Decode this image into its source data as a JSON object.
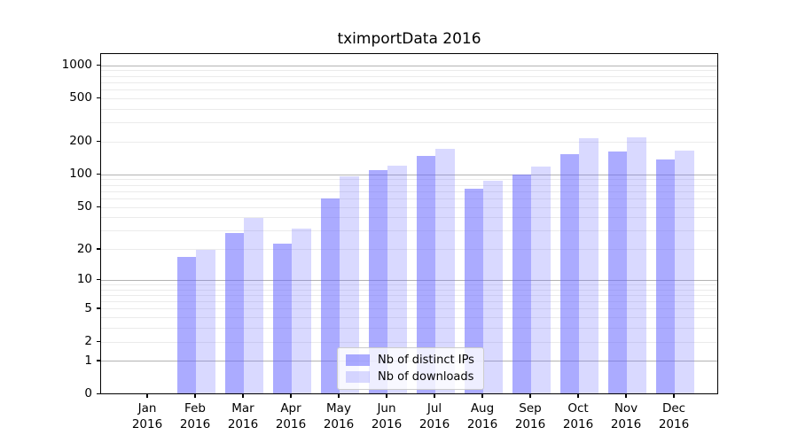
{
  "figure": {
    "title": "tximportData 2016"
  },
  "chart_data": {
    "type": "bar",
    "title": "tximportData 2016",
    "categories": [
      "Jan",
      "Feb",
      "Mar",
      "Apr",
      "May",
      "Jun",
      "Jul",
      "Aug",
      "Sep",
      "Oct",
      "Nov",
      "Dec"
    ],
    "x_tick_year": "2016",
    "series": [
      {
        "name": "Nb of distinct IPs",
        "key": "ips",
        "color": "#6666ff",
        "alpha": 0.55,
        "values": [
          0,
          17,
          29,
          23,
          61,
          111,
          150,
          75,
          100,
          156,
          165,
          138
        ]
      },
      {
        "name": "Nb of downloads",
        "key": "downloads",
        "color": "#6666ff",
        "alpha": 0.25,
        "values": [
          0,
          20,
          40,
          32,
          98,
          122,
          175,
          88,
          119,
          216,
          223,
          167
        ]
      }
    ],
    "y_axis": {
      "scale": "log1p",
      "tick_values": [
        1000,
        500,
        200,
        100,
        50,
        20,
        10,
        5,
        2,
        1,
        0
      ],
      "major_gridlines": [
        1,
        10,
        100,
        1000
      ],
      "minor_gridlines": [
        2,
        3,
        4,
        5,
        6,
        7,
        8,
        9,
        20,
        30,
        40,
        50,
        60,
        70,
        80,
        90,
        200,
        300,
        400,
        500,
        600,
        700,
        800,
        900
      ],
      "ylim": [
        0,
        1280
      ]
    },
    "legend": {
      "position": "lower-center-inside",
      "entries": [
        "Nb of distinct IPs",
        "Nb of downloads"
      ]
    },
    "grid": true,
    "colors": {
      "major_grid": "#b3b3b3",
      "minor_grid": "#ebebeb",
      "spine": "#000000",
      "background": "#ffffff",
      "text": "#000000"
    }
  }
}
